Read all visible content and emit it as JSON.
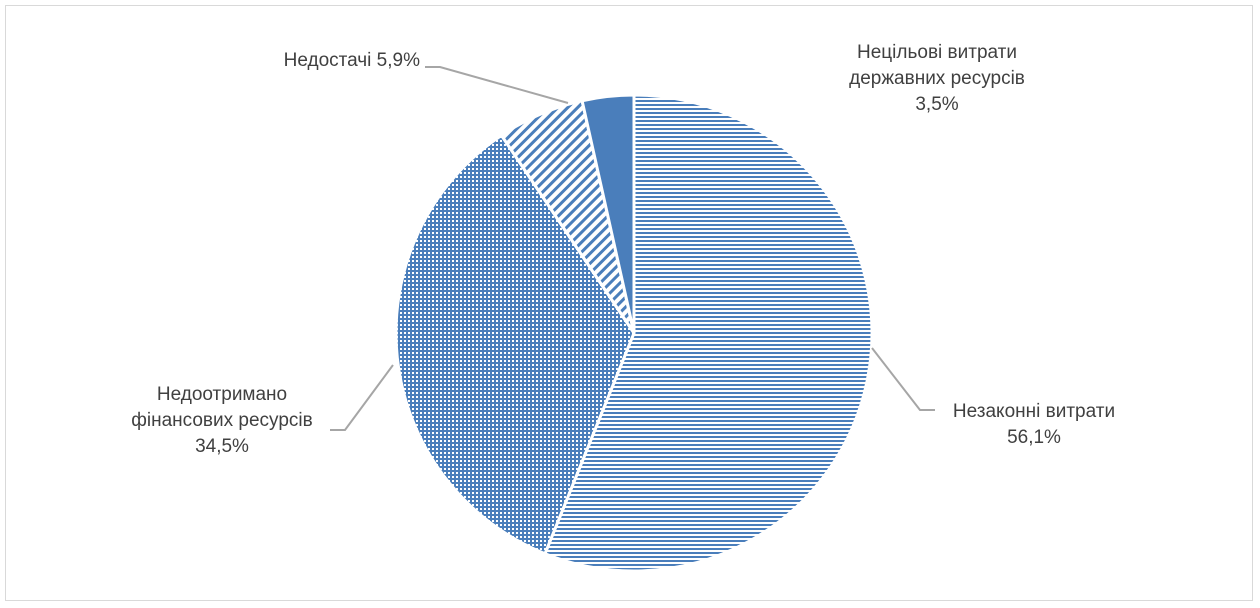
{
  "chart_data": {
    "type": "pie",
    "title": "",
    "slices": [
      {
        "label_lines": [
          "Незаконні витрати"
        ],
        "value_text": "56,1%",
        "value": 56.1,
        "pattern": "horizontal"
      },
      {
        "label_lines": [
          "Недоотримано",
          "фінансових ресурсів"
        ],
        "value_text": "34,5%",
        "value": 34.5,
        "pattern": "dots"
      },
      {
        "label_lines": [
          "Недостачі"
        ],
        "value_text": "5,9%",
        "value": 5.9,
        "pattern": "diagonal"
      },
      {
        "label_lines": [
          "Нецільові витрати",
          "державних ресурсів"
        ],
        "value_text": "3,5%",
        "value": 3.5,
        "pattern": "solid"
      }
    ],
    "start_angle_deg": 0,
    "direction": "clockwise",
    "colors": {
      "fill": "#4a7ebb",
      "stroke": "#ffffff",
      "leader": "#a6a6a6",
      "text": "#404040"
    },
    "legend": "none"
  }
}
